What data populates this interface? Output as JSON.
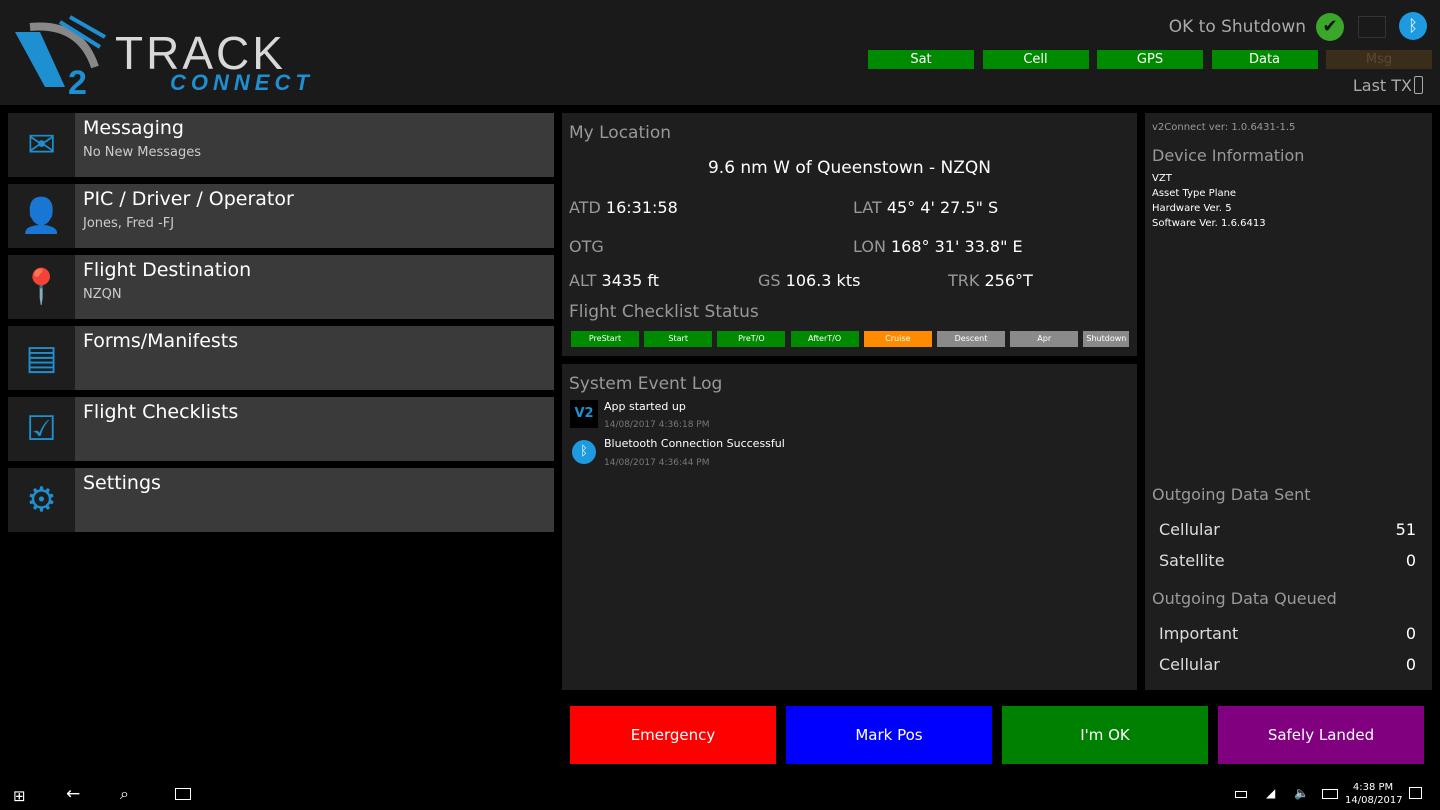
{
  "header": {
    "logo_text": "TRACK",
    "logo_sub": "CONNECT",
    "logo_mark": "V2",
    "shutdown": "OK to Shutdown",
    "last_tx": "Last TX",
    "status": [
      {
        "label": "Sat",
        "color": "#008a00"
      },
      {
        "label": "Cell",
        "color": "#008a00"
      },
      {
        "label": "GPS",
        "color": "#008a00"
      },
      {
        "label": "Data",
        "color": "#008a00"
      },
      {
        "label": "Msg",
        "color": "#3a2e1a"
      }
    ]
  },
  "menu": [
    {
      "title": "Messaging",
      "sub": "No New Messages",
      "icon": "envelope-icon"
    },
    {
      "title": "PIC / Driver / Operator",
      "sub": "Jones, Fred -FJ",
      "icon": "person-icon"
    },
    {
      "title": "Flight Destination",
      "sub": "NZQN",
      "icon": "map-pin-icon"
    },
    {
      "title": "Forms/Manifests",
      "sub": "",
      "icon": "forms-icon"
    },
    {
      "title": "Flight Checklists",
      "sub": "",
      "icon": "checklist-icon"
    },
    {
      "title": "Settings",
      "sub": "",
      "icon": "gear-icon"
    }
  ],
  "location": {
    "title": "My Location",
    "place": "9.6 nm W of Queenstown - NZQN",
    "atd_l": "ATD",
    "atd": "16:31:58",
    "lat_l": "LAT",
    "lat": "45° 4' 27.5\" S",
    "otg_l": "OTG",
    "lon_l": "LON",
    "lon": "168° 31' 33.8\" E",
    "alt_l": "ALT",
    "alt": "3435 ft",
    "gs_l": "GS",
    "gs": "106.3 kts",
    "trk_l": "TRK",
    "trk": "256°T"
  },
  "checklist": {
    "title": "Flight Checklist Status",
    "items": [
      {
        "label": "PreStart",
        "color": "#008a00"
      },
      {
        "label": "Start",
        "color": "#008a00"
      },
      {
        "label": "PreT/O",
        "color": "#008a00"
      },
      {
        "label": "AfterT/O",
        "color": "#008a00"
      },
      {
        "label": "Cruise",
        "color": "#ff8c00"
      },
      {
        "label": "Descent",
        "color": "#8a8a8a"
      },
      {
        "label": "Apr",
        "color": "#8a8a8a"
      },
      {
        "label": "Shutdown",
        "color": "#8a8a8a"
      }
    ]
  },
  "log": {
    "title": "System Event Log",
    "events": [
      {
        "text": "App started up",
        "time": "14/08/2017 4:36:18 PM"
      },
      {
        "text": "Bluetooth Connection Successful",
        "time": "14/08/2017 4:36:44 PM"
      }
    ]
  },
  "device": {
    "version": "v2Connect ver: 1.0.6431-1.5",
    "title": "Device Information",
    "lines": [
      "VZT",
      "Asset Type Plane",
      "Hardware Ver. 5",
      "Software Ver. 1.6.6413"
    ],
    "sent_title": "Outgoing Data Sent",
    "sent": [
      {
        "label": "Cellular",
        "value": "51"
      },
      {
        "label": "Satellite",
        "value": "0"
      }
    ],
    "queued_title": "Outgoing Data Queued",
    "queued": [
      {
        "label": "Important",
        "value": "0"
      },
      {
        "label": "Cellular",
        "value": "0"
      }
    ]
  },
  "actions": [
    {
      "label": "Emergency",
      "color": "#ff0000"
    },
    {
      "label": "Mark Pos",
      "color": "#0000ff"
    },
    {
      "label": "I'm OK",
      "color": "#008000"
    },
    {
      "label": "Safely Landed",
      "color": "#800080"
    }
  ],
  "taskbar": {
    "time": "4:38 PM",
    "date": "14/08/2017"
  }
}
